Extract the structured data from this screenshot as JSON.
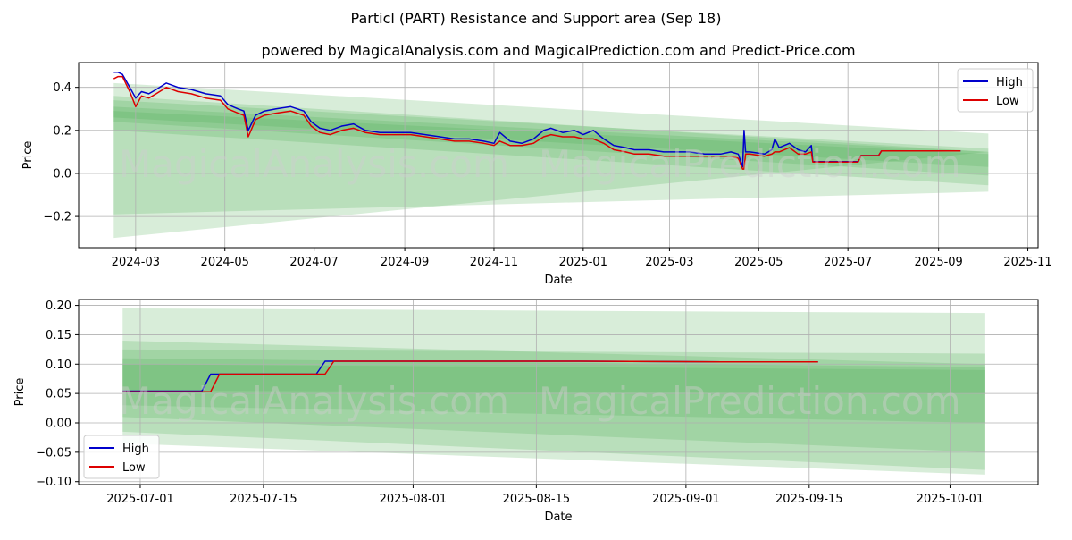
{
  "header": {
    "title": "Particl (PART) Resistance and Support area (Sep 18)",
    "subtitle": "powered by MagicalAnalysis.com and MagicalPrediction.com and Predict-Price.com"
  },
  "watermarks": [
    "MagicalAnalysis.com",
    "MagicalPrediction.com"
  ],
  "colors": {
    "high": "#0000cc",
    "low": "#dd0000",
    "band": "#4caf50",
    "grid": "#b0b0b0"
  },
  "chart_data": [
    {
      "type": "line",
      "xlabel": "Date",
      "ylabel": "Price",
      "x_axis": "date",
      "xlim": [
        "2024-01-22",
        "2025-11-08"
      ],
      "ylim": [
        -0.345,
        0.515
      ],
      "xticks": [
        "2024-03-01",
        "2024-05-01",
        "2024-07-01",
        "2024-09-01",
        "2024-11-01",
        "2025-01-01",
        "2025-03-01",
        "2025-05-01",
        "2025-07-01",
        "2025-09-01",
        "2025-11-01"
      ],
      "xtick_labels": [
        "2024-03",
        "2024-05",
        "2024-07",
        "2024-09",
        "2024-11",
        "2025-01",
        "2025-03",
        "2025-05",
        "2025-07",
        "2025-09",
        "2025-11"
      ],
      "yticks": [
        -0.2,
        0.0,
        0.2,
        0.4
      ],
      "ytick_labels": [
        "−0.2",
        "0.0",
        "0.2",
        "0.4"
      ],
      "grid": true,
      "legend": {
        "position": "top-right",
        "entries": [
          "High",
          "Low"
        ]
      },
      "bands": [
        {
          "x": [
            "2024-02-15",
            "2025-10-05"
          ],
          "upper": [
            0.42,
            0.185
          ],
          "lower": [
            -0.3,
            0.1
          ]
        },
        {
          "x": [
            "2024-02-15",
            "2025-10-05"
          ],
          "upper": [
            0.36,
            0.1
          ],
          "lower": [
            -0.19,
            -0.085
          ]
        },
        {
          "x": [
            "2024-02-15",
            "2025-10-05"
          ],
          "upper": [
            0.34,
            0.115
          ],
          "lower": [
            0.2,
            -0.055
          ]
        },
        {
          "x": [
            "2024-02-15",
            "2025-10-05"
          ],
          "upper": [
            0.31,
            0.1
          ],
          "lower": [
            0.24,
            -0.01
          ]
        },
        {
          "x": [
            "2024-02-15",
            "2025-10-05"
          ],
          "upper": [
            0.29,
            0.09
          ],
          "lower": [
            0.26,
            0.03
          ]
        }
      ],
      "series": [
        {
          "name": "High",
          "x": [
            "2024-02-15",
            "2024-02-18",
            "2024-02-21",
            "2024-02-26",
            "2024-03-01",
            "2024-03-05",
            "2024-03-10",
            "2024-03-15",
            "2024-03-22",
            "2024-03-30",
            "2024-04-08",
            "2024-04-18",
            "2024-04-28",
            "2024-05-03",
            "2024-05-10",
            "2024-05-14",
            "2024-05-17",
            "2024-05-22",
            "2024-05-28",
            "2024-06-05",
            "2024-06-15",
            "2024-06-24",
            "2024-06-29",
            "2024-07-05",
            "2024-07-12",
            "2024-07-20",
            "2024-07-28",
            "2024-08-05",
            "2024-08-15",
            "2024-08-25",
            "2024-09-05",
            "2024-09-15",
            "2024-09-25",
            "2024-10-05",
            "2024-10-15",
            "2024-10-25",
            "2024-11-01",
            "2024-11-05",
            "2024-11-12",
            "2024-11-20",
            "2024-11-28",
            "2024-12-05",
            "2024-12-10",
            "2024-12-18",
            "2024-12-26",
            "2025-01-01",
            "2025-01-08",
            "2025-01-15",
            "2025-01-22",
            "2025-01-30",
            "2025-02-05",
            "2025-02-15",
            "2025-02-25",
            "2025-03-05",
            "2025-03-15",
            "2025-03-25",
            "2025-04-05",
            "2025-04-12",
            "2025-04-17",
            "2025-04-20",
            "2025-04-21",
            "2025-04-22",
            "2025-04-25",
            "2025-05-05",
            "2025-05-10",
            "2025-05-12",
            "2025-05-15",
            "2025-05-22",
            "2025-05-28",
            "2025-06-02",
            "2025-06-06",
            "2025-06-07",
            "2025-06-12",
            "2025-06-20",
            "2025-06-29",
            "2025-07-08",
            "2025-07-10",
            "2025-07-22",
            "2025-07-24",
            "2025-08-20",
            "2025-09-05",
            "2025-09-16"
          ],
          "values": [
            0.47,
            0.47,
            0.46,
            0.4,
            0.35,
            0.38,
            0.37,
            0.39,
            0.42,
            0.4,
            0.39,
            0.37,
            0.36,
            0.32,
            0.3,
            0.29,
            0.2,
            0.27,
            0.29,
            0.3,
            0.31,
            0.29,
            0.24,
            0.21,
            0.2,
            0.22,
            0.23,
            0.2,
            0.19,
            0.19,
            0.19,
            0.18,
            0.17,
            0.16,
            0.16,
            0.15,
            0.14,
            0.19,
            0.15,
            0.14,
            0.16,
            0.2,
            0.21,
            0.19,
            0.2,
            0.18,
            0.2,
            0.16,
            0.13,
            0.12,
            0.11,
            0.11,
            0.1,
            0.1,
            0.1,
            0.09,
            0.09,
            0.1,
            0.09,
            0.03,
            0.2,
            0.1,
            0.1,
            0.09,
            0.11,
            0.16,
            0.12,
            0.14,
            0.11,
            0.1,
            0.13,
            0.055,
            0.055,
            0.055,
            0.055,
            0.055,
            0.083,
            0.083,
            0.105,
            0.105,
            0.105,
            0.105
          ]
        },
        {
          "name": "Low",
          "x": [
            "2024-02-15",
            "2024-02-18",
            "2024-02-21",
            "2024-02-26",
            "2024-03-01",
            "2024-03-05",
            "2024-03-10",
            "2024-03-15",
            "2024-03-22",
            "2024-03-30",
            "2024-04-08",
            "2024-04-18",
            "2024-04-28",
            "2024-05-03",
            "2024-05-10",
            "2024-05-14",
            "2024-05-17",
            "2024-05-22",
            "2024-05-28",
            "2024-06-05",
            "2024-06-15",
            "2024-06-24",
            "2024-06-29",
            "2024-07-05",
            "2024-07-12",
            "2024-07-20",
            "2024-07-28",
            "2024-08-05",
            "2024-08-15",
            "2024-08-25",
            "2024-09-05",
            "2024-09-15",
            "2024-09-25",
            "2024-10-05",
            "2024-10-15",
            "2024-10-25",
            "2024-11-01",
            "2024-11-05",
            "2024-11-12",
            "2024-11-20",
            "2024-11-28",
            "2024-12-05",
            "2024-12-10",
            "2024-12-18",
            "2024-12-26",
            "2025-01-01",
            "2025-01-08",
            "2025-01-15",
            "2025-01-22",
            "2025-01-30",
            "2025-02-05",
            "2025-02-15",
            "2025-02-25",
            "2025-03-05",
            "2025-03-15",
            "2025-03-25",
            "2025-04-05",
            "2025-04-12",
            "2025-04-17",
            "2025-04-20",
            "2025-04-21",
            "2025-04-22",
            "2025-04-25",
            "2025-05-05",
            "2025-05-10",
            "2025-05-12",
            "2025-05-15",
            "2025-05-22",
            "2025-05-28",
            "2025-06-02",
            "2025-06-06",
            "2025-06-07",
            "2025-06-12",
            "2025-06-20",
            "2025-06-29",
            "2025-07-08",
            "2025-07-10",
            "2025-07-22",
            "2025-07-24",
            "2025-08-20",
            "2025-09-05",
            "2025-09-16"
          ],
          "values": [
            0.44,
            0.45,
            0.45,
            0.38,
            0.31,
            0.36,
            0.35,
            0.37,
            0.4,
            0.38,
            0.37,
            0.35,
            0.34,
            0.3,
            0.28,
            0.27,
            0.17,
            0.25,
            0.27,
            0.28,
            0.29,
            0.27,
            0.22,
            0.19,
            0.18,
            0.2,
            0.21,
            0.19,
            0.18,
            0.18,
            0.18,
            0.17,
            0.16,
            0.15,
            0.15,
            0.14,
            0.13,
            0.15,
            0.13,
            0.13,
            0.14,
            0.17,
            0.18,
            0.17,
            0.17,
            0.16,
            0.16,
            0.14,
            0.11,
            0.1,
            0.09,
            0.09,
            0.08,
            0.08,
            0.08,
            0.08,
            0.08,
            0.08,
            0.07,
            0.02,
            0.02,
            0.09,
            0.09,
            0.08,
            0.09,
            0.1,
            0.1,
            0.12,
            0.09,
            0.09,
            0.1,
            0.053,
            0.053,
            0.053,
            0.053,
            0.053,
            0.083,
            0.083,
            0.105,
            0.105,
            0.105,
            0.105
          ]
        }
      ]
    },
    {
      "type": "line",
      "xlabel": "Date",
      "ylabel": "Price",
      "x_axis": "date",
      "xlim": [
        "2025-06-24",
        "2025-10-11"
      ],
      "ylim": [
        -0.105,
        0.21
      ],
      "xticks": [
        "2025-07-01",
        "2025-07-15",
        "2025-08-01",
        "2025-08-15",
        "2025-09-01",
        "2025-09-15",
        "2025-10-01"
      ],
      "xtick_labels": [
        "2025-07-01",
        "2025-07-15",
        "2025-08-01",
        "2025-08-15",
        "2025-09-01",
        "2025-09-15",
        "2025-10-01"
      ],
      "yticks": [
        -0.1,
        -0.05,
        0.0,
        0.05,
        0.1,
        0.15,
        0.2
      ],
      "ytick_labels": [
        "−0.10",
        "−0.05",
        "0.00",
        "0.05",
        "0.10",
        "0.15",
        "0.20"
      ],
      "grid": true,
      "legend": {
        "position": "bottom-left",
        "entries": [
          "High",
          "Low"
        ]
      },
      "bands": [
        {
          "x": [
            "2025-06-29",
            "2025-10-05"
          ],
          "upper": [
            0.195,
            0.187
          ],
          "lower": [
            -0.035,
            -0.088
          ]
        },
        {
          "x": [
            "2025-06-29",
            "2025-10-05"
          ],
          "upper": [
            0.14,
            0.1
          ],
          "lower": [
            -0.015,
            -0.08
          ]
        },
        {
          "x": [
            "2025-06-29",
            "2025-10-05"
          ],
          "upper": [
            0.125,
            0.118
          ],
          "lower": [
            0.01,
            -0.05
          ]
        },
        {
          "x": [
            "2025-06-29",
            "2025-10-05"
          ],
          "upper": [
            0.11,
            0.095
          ],
          "lower": [
            0.03,
            0.0
          ]
        },
        {
          "x": [
            "2025-06-29",
            "2025-10-05"
          ],
          "upper": [
            0.1,
            0.09
          ],
          "lower": [
            0.055,
            0.05
          ]
        }
      ],
      "series": [
        {
          "name": "High",
          "x": [
            "2025-06-29",
            "2025-07-08",
            "2025-07-09",
            "2025-07-10",
            "2025-07-21",
            "2025-07-22",
            "2025-07-23",
            "2025-08-20",
            "2025-09-05",
            "2025-09-16"
          ],
          "values": [
            0.054,
            0.054,
            0.083,
            0.083,
            0.083,
            0.105,
            0.105,
            0.105,
            0.104,
            0.104
          ]
        },
        {
          "name": "Low",
          "x": [
            "2025-06-29",
            "2025-07-09",
            "2025-07-10",
            "2025-07-11",
            "2025-07-22",
            "2025-07-23",
            "2025-07-24",
            "2025-08-20",
            "2025-09-05",
            "2025-09-16"
          ],
          "values": [
            0.053,
            0.053,
            0.083,
            0.083,
            0.083,
            0.105,
            0.105,
            0.105,
            0.104,
            0.104
          ]
        }
      ]
    }
  ]
}
